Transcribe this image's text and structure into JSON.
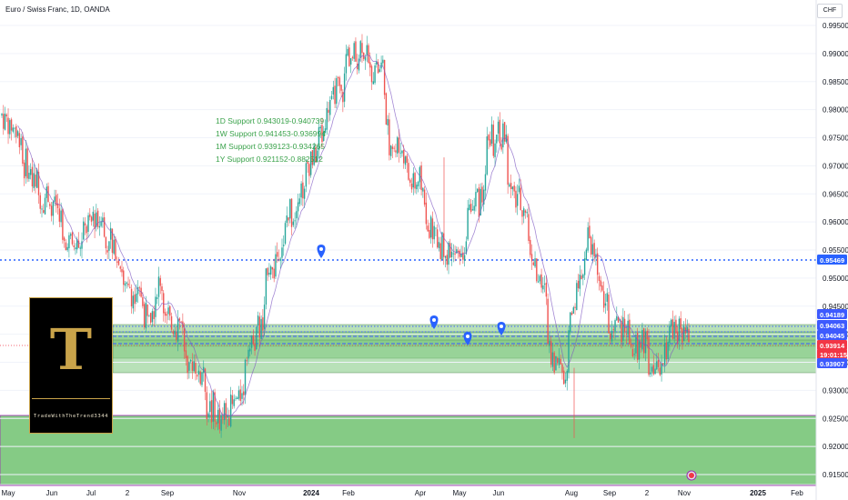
{
  "header": {
    "title": "Euro / Swiss Franc, 1D, OANDA"
  },
  "currency_label": "CHF",
  "logo": {
    "letter": "T",
    "caption": "TradeWithTheTrend3344"
  },
  "support_text": [
    "1D Support 0.943019-0.940739",
    "1W Support 0.941453-0.936994",
    "1M Support 0.939123-0.934265",
    "1Y Support 0.921152-0.882512"
  ],
  "colors": {
    "up": "#26a69a",
    "down": "#ef5350",
    "zone": "#7ec87e",
    "zone_border": "#9c27b0",
    "support_text": "#3aa24b",
    "level_line": "#2962ff",
    "price_tag_red": "#f23645",
    "marker": "#2962ff",
    "ma_line": "#7e57c2"
  },
  "chart_data": {
    "type": "candlestick",
    "title": "Euro / Swiss Franc, 1D, OANDA",
    "ylim": [
      0.9135,
      0.9982
    ],
    "y_ticks": [
      "0.99500",
      "0.99000",
      "0.98500",
      "0.98000",
      "0.97500",
      "0.97000",
      "0.96500",
      "0.96000",
      "0.95500",
      "0.95000",
      "0.94500",
      "0.94000",
      "0.93500",
      "0.93000",
      "0.92500",
      "0.92000",
      "0.91500"
    ],
    "x_ticks": [
      "May",
      "Jun",
      "Jul",
      "2",
      "Sep",
      "Nov",
      "2024",
      "Feb",
      "Apr",
      "May",
      "Jun",
      "Aug",
      "Sep",
      "2",
      "Nov",
      "2025",
      "Feb"
    ],
    "price_path": [
      [
        0.98,
        0.979
      ],
      [
        0.975,
        0.971
      ],
      [
        0.965,
        0.9655
      ],
      [
        0.96,
        0.956
      ],
      [
        0.956,
        0.959
      ],
      [
        0.962,
        0.958
      ],
      [
        0.953,
        0.948
      ],
      [
        0.947,
        0.942
      ],
      [
        0.95,
        0.943
      ],
      [
        0.942,
        0.935
      ],
      [
        0.933,
        0.929
      ],
      [
        0.923,
        0.926
      ],
      [
        0.93,
        0.937
      ],
      [
        0.942,
        0.95
      ],
      [
        0.956,
        0.96
      ],
      [
        0.966,
        0.97
      ],
      [
        0.976,
        0.98
      ],
      [
        0.985,
        0.988
      ],
      [
        0.992,
        0.989
      ],
      [
        0.986,
        0.975
      ],
      [
        0.972,
        0.968
      ],
      [
        0.965,
        0.96
      ],
      [
        0.954,
        0.953
      ],
      [
        0.955,
        0.962
      ],
      [
        0.966,
        0.974
      ],
      [
        0.976,
        0.967
      ],
      [
        0.962,
        0.956
      ],
      [
        0.946,
        0.938
      ],
      [
        0.932,
        0.94
      ],
      [
        0.955,
        0.957
      ],
      [
        0.945,
        0.94
      ],
      [
        0.942,
        0.936
      ],
      [
        0.939,
        0.933
      ],
      [
        0.936,
        0.942
      ],
      [
        0.94,
        0.937
      ]
    ],
    "levels": [
      {
        "value": 0.95469,
        "label": "0.95469",
        "style": "dotted"
      },
      {
        "value": 0.94189,
        "label": "0.94189",
        "style": "dotted"
      },
      {
        "value": 0.94063,
        "label": "0.94063",
        "style": "dotted"
      },
      {
        "value": 0.94045,
        "label": "0.94045",
        "style": "dashed"
      },
      {
        "value": 0.93907,
        "label": "0.93907",
        "style": "dashed"
      }
    ],
    "current_price": {
      "value": 0.93914,
      "label": "0.93914",
      "countdown": "19:01:15"
    },
    "support_zones": [
      {
        "from": 0.940739,
        "to": 0.943019
      },
      {
        "from": 0.936994,
        "to": 0.941453
      },
      {
        "from": 0.934265,
        "to": 0.939123
      },
      {
        "from": 0.882512,
        "to": 0.921152
      }
    ]
  }
}
